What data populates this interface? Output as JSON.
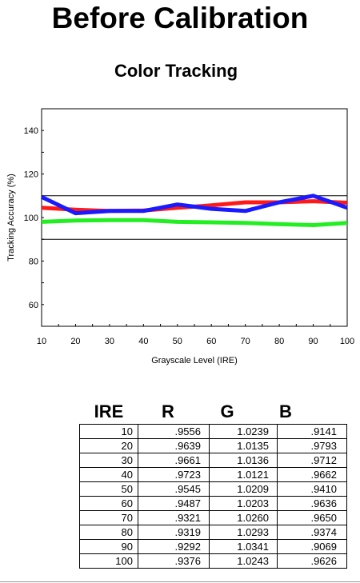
{
  "page": {
    "title": "Before Calibration"
  },
  "chart_data": {
    "type": "line",
    "title": "Color Tracking",
    "xlabel": "Grayscale Level (IRE)",
    "ylabel": "Tracking Accuracy (%)",
    "xlim": [
      10,
      100
    ],
    "ylim": [
      50,
      150
    ],
    "x": [
      10,
      20,
      30,
      40,
      50,
      60,
      70,
      80,
      90,
      100
    ],
    "xticks": [
      10,
      20,
      30,
      40,
      50,
      60,
      70,
      80,
      90,
      100
    ],
    "yticks": [
      60,
      80,
      100,
      120,
      140
    ],
    "reference_lines": [
      90,
      110
    ],
    "grid": false,
    "series": [
      {
        "color": "#ff1a1a",
        "values": [
          104.5,
          103.6,
          103.0,
          103.2,
          104.5,
          105.6,
          107.0,
          107.0,
          107.5,
          106.8
        ]
      },
      {
        "color": "#1a1aff",
        "values": [
          109.5,
          102.0,
          103.0,
          103.0,
          106.0,
          104.0,
          103.0,
          107.0,
          110.0,
          104.5
        ]
      },
      {
        "color": "#22ee22",
        "values": [
          98.0,
          98.6,
          98.8,
          98.8,
          98.0,
          97.8,
          97.5,
          97.0,
          96.5,
          97.5
        ]
      }
    ]
  },
  "table": {
    "headers": [
      "IRE",
      "R",
      "G",
      "B"
    ],
    "rows": [
      [
        "10",
        ".9556",
        "1.0239",
        ".9141"
      ],
      [
        "20",
        ".9639",
        "1.0135",
        ".9793"
      ],
      [
        "30",
        ".9661",
        "1.0136",
        ".9712"
      ],
      [
        "40",
        ".9723",
        "1.0121",
        ".9662"
      ],
      [
        "50",
        ".9545",
        "1.0209",
        ".9410"
      ],
      [
        "60",
        ".9487",
        "1.0203",
        ".9636"
      ],
      [
        "70",
        ".9321",
        "1.0260",
        ".9650"
      ],
      [
        "80",
        ".9319",
        "1.0293",
        ".9374"
      ],
      [
        "90",
        ".9292",
        "1.0341",
        ".9069"
      ],
      [
        "100",
        ".9376",
        "1.0243",
        ".9626"
      ]
    ]
  }
}
